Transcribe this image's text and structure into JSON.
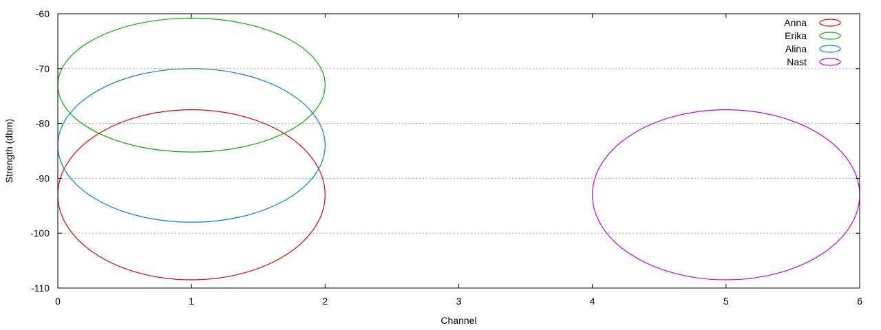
{
  "chart_data": {
    "type": "ellipse",
    "title": "",
    "xlabel": "Channel",
    "ylabel": "Strength (dbm)",
    "xlim": [
      0,
      6
    ],
    "ylim": [
      -110,
      -60
    ],
    "xticks": [
      0,
      1,
      2,
      3,
      4,
      5,
      6
    ],
    "yticks": [
      -110,
      -100,
      -90,
      -80,
      -70,
      -60
    ],
    "grid": "horizontal-dotted",
    "legend_position": "top-right",
    "series": [
      {
        "name": "Anna",
        "color": "#e00000",
        "center": [
          1,
          -93
        ],
        "half_width": 1,
        "half_height": 15.5
      },
      {
        "name": "Erika",
        "color": "#00b000",
        "center": [
          1,
          -73
        ],
        "half_width": 1,
        "half_height": 12.2
      },
      {
        "name": "Alina",
        "color": "#0080e0",
        "center": [
          1,
          -84
        ],
        "half_width": 1,
        "half_height": 14
      },
      {
        "name": "Nast",
        "color": "#c000e0",
        "center": [
          5,
          -93
        ],
        "half_width": 1,
        "half_height": 15.5
      }
    ]
  }
}
